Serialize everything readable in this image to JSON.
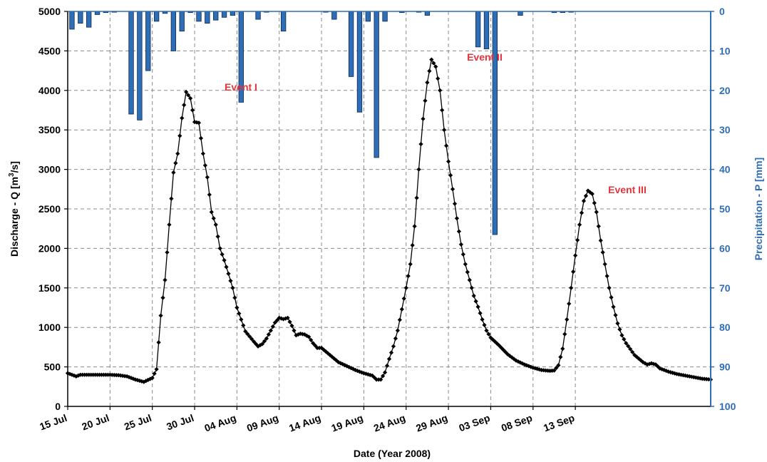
{
  "chart_data": {
    "type": "line",
    "xlabel": "Date (Year 2008)",
    "ylabel_left": {
      "main": "Discharge - Q [m",
      "sup": "3",
      "end": "/s]"
    },
    "ylabel_right": "Precipitation - P [mm]",
    "ylim_left": [
      0,
      5000
    ],
    "ylim_right_inverted": [
      0,
      100
    ],
    "xlim_days": [
      0,
      60
    ],
    "grid": true,
    "left_ticks": [
      "0",
      "500",
      "1000",
      "1500",
      "2000",
      "2500",
      "3000",
      "3500",
      "4000",
      "4500",
      "5000"
    ],
    "right_ticks": [
      "0",
      "10",
      "20",
      "30",
      "40",
      "50",
      "60",
      "70",
      "80",
      "90",
      "100"
    ],
    "x_tick_labels": [
      "15 Jul",
      "20 Jul",
      "25 Jul",
      "30 Jul",
      "04 Aug",
      "09 Aug",
      "14 Aug",
      "19 Aug",
      "24 Aug",
      "29 Aug",
      "03 Sep",
      "08 Sep",
      "13 Sep"
    ],
    "events": [
      {
        "label": "Event I",
        "day": 15.0,
        "q": 4000
      },
      {
        "label": "Event II",
        "day": 38.8,
        "q": 4420
      },
      {
        "label": "Event III",
        "day": 52.0,
        "q": 2690
      }
    ],
    "discharge_keypoints": [
      [
        0,
        420
      ],
      [
        1,
        380
      ],
      [
        1.5,
        400
      ],
      [
        2,
        400
      ],
      [
        5,
        400
      ],
      [
        6,
        395
      ],
      [
        7,
        380
      ],
      [
        8,
        340
      ],
      [
        9,
        310
      ],
      [
        10,
        360
      ],
      [
        10.5,
        470
      ],
      [
        11,
        1150
      ],
      [
        11.5,
        1600
      ],
      [
        12,
        2300
      ],
      [
        12.5,
        2960
      ],
      [
        13,
        3200
      ],
      [
        13.5,
        3650
      ],
      [
        14,
        3980
      ],
      [
        14.5,
        3900
      ],
      [
        15,
        3600
      ],
      [
        15.5,
        3590
      ],
      [
        16,
        3200
      ],
      [
        16.5,
        2900
      ],
      [
        17,
        2460
      ],
      [
        17.5,
        2300
      ],
      [
        18,
        2000
      ],
      [
        18.5,
        1850
      ],
      [
        19,
        1680
      ],
      [
        19.5,
        1500
      ],
      [
        20,
        1250
      ],
      [
        20.5,
        1100
      ],
      [
        21,
        950
      ],
      [
        22,
        820
      ],
      [
        22.5,
        760
      ],
      [
        23,
        790
      ],
      [
        23.5,
        860
      ],
      [
        24,
        960
      ],
      [
        24.5,
        1060
      ],
      [
        25,
        1120
      ],
      [
        25.5,
        1105
      ],
      [
        26,
        1120
      ],
      [
        26.5,
        1020
      ],
      [
        27,
        900
      ],
      [
        27.5,
        920
      ],
      [
        28,
        910
      ],
      [
        28.5,
        880
      ],
      [
        29,
        800
      ],
      [
        29.5,
        740
      ],
      [
        30,
        740
      ],
      [
        31,
        650
      ],
      [
        32,
        560
      ],
      [
        33,
        510
      ],
      [
        34,
        460
      ],
      [
        35,
        420
      ],
      [
        36,
        390
      ],
      [
        36.5,
        340
      ],
      [
        37,
        340
      ],
      [
        37.5,
        430
      ],
      [
        38,
        600
      ],
      [
        38.5,
        760
      ],
      [
        39,
        960
      ],
      [
        39.5,
        1230
      ],
      [
        40,
        1500
      ],
      [
        40.5,
        1800
      ],
      [
        41,
        2280
      ],
      [
        41.5,
        3000
      ],
      [
        42,
        3640
      ],
      [
        42.5,
        4100
      ],
      [
        43,
        4390
      ],
      [
        43.5,
        4300
      ],
      [
        44,
        4000
      ],
      [
        44.5,
        3500
      ],
      [
        45,
        3100
      ],
      [
        45.5,
        2750
      ],
      [
        46,
        2380
      ],
      [
        46.5,
        2050
      ],
      [
        47,
        1800
      ],
      [
        47.5,
        1600
      ],
      [
        48,
        1400
      ],
      [
        48.5,
        1260
      ],
      [
        49,
        1100
      ],
      [
        49.5,
        960
      ],
      [
        50,
        870
      ],
      [
        51,
        770
      ],
      [
        52,
        660
      ],
      [
        53,
        580
      ],
      [
        54,
        530
      ],
      [
        55,
        490
      ],
      [
        56,
        460
      ],
      [
        57,
        450
      ],
      [
        57.5,
        455
      ],
      [
        58,
        520
      ],
      [
        58.5,
        730
      ],
      [
        59,
        1100
      ],
      [
        59.5,
        1500
      ],
      [
        60,
        1910
      ],
      [
        60.5,
        2300
      ],
      [
        61,
        2600
      ],
      [
        61.5,
        2730
      ],
      [
        62,
        2690
      ],
      [
        62.5,
        2460
      ],
      [
        63,
        2100
      ],
      [
        63.5,
        1800
      ],
      [
        64,
        1500
      ],
      [
        64.5,
        1260
      ],
      [
        65,
        1050
      ],
      [
        65.5,
        900
      ],
      [
        66,
        800
      ],
      [
        67,
        650
      ],
      [
        68,
        560
      ],
      [
        68.5,
        530
      ],
      [
        69,
        545
      ],
      [
        69.5,
        530
      ],
      [
        70,
        480
      ],
      [
        71,
        440
      ],
      [
        72,
        410
      ],
      [
        73,
        390
      ],
      [
        74,
        370
      ],
      [
        75,
        350
      ],
      [
        76,
        340
      ]
    ],
    "precipitation": [
      [
        0.5,
        4.5
      ],
      [
        1.5,
        3
      ],
      [
        2.5,
        4
      ],
      [
        3.5,
        0.8
      ],
      [
        4.5,
        0.3
      ],
      [
        5.5,
        0.2
      ],
      [
        7.5,
        26
      ],
      [
        8.5,
        27.5
      ],
      [
        9.5,
        15
      ],
      [
        10.5,
        2.5
      ],
      [
        11.5,
        0.5
      ],
      [
        12.5,
        10
      ],
      [
        13.5,
        5
      ],
      [
        14.5,
        0.3
      ],
      [
        15.5,
        2.5
      ],
      [
        16.5,
        3
      ],
      [
        17.5,
        2.2
      ],
      [
        18.5,
        1.5
      ],
      [
        19.5,
        1
      ],
      [
        20.5,
        23
      ],
      [
        22.5,
        2
      ],
      [
        23.5,
        0.2
      ],
      [
        25.5,
        5
      ],
      [
        30.5,
        0.2
      ],
      [
        31.5,
        2
      ],
      [
        33.5,
        16.5
      ],
      [
        34.5,
        25.5
      ],
      [
        35.5,
        2.5
      ],
      [
        36.5,
        37
      ],
      [
        37.5,
        2.5
      ],
      [
        39.5,
        0.3
      ],
      [
        41.5,
        0.2
      ],
      [
        42.5,
        1
      ],
      [
        48.5,
        9
      ],
      [
        49.5,
        9.5
      ],
      [
        50.5,
        56.5
      ],
      [
        53.5,
        1
      ],
      [
        57.5,
        0.3
      ],
      [
        58.5,
        0.3
      ],
      [
        59.5,
        0.2
      ]
    ],
    "colors": {
      "line": "#000000",
      "bar_fill": "#2f6db5",
      "bar_edge": "#0b2a55",
      "right_axis": "#2f6db5",
      "event_text": "#e8333a",
      "grid": "#8a8a8a"
    }
  }
}
